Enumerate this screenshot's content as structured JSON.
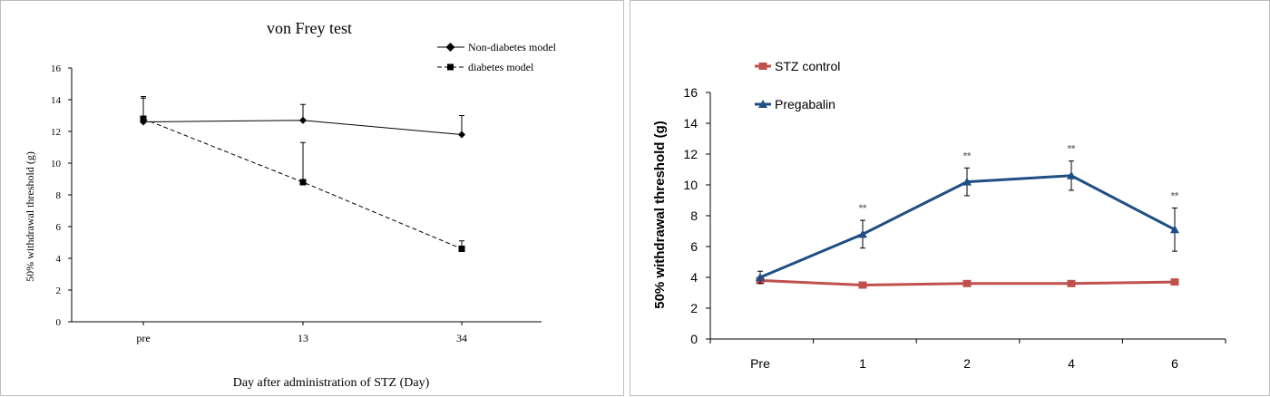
{
  "chart_data": [
    {
      "type": "line",
      "title": "von Frey test",
      "xlabel": "Day after administration  of STZ (Day)",
      "ylabel": "50% withdrawal threshold (g)",
      "categories": [
        "pre",
        "13",
        "34"
      ],
      "ylim": [
        0,
        16
      ],
      "yticks": [
        "0",
        "2",
        "4",
        "6",
        "8",
        "10",
        "12",
        "14",
        "16"
      ],
      "grid": false,
      "legend_position": "top-right",
      "series": [
        {
          "name": "Non-diabetes model",
          "values": [
            12.6,
            12.7,
            11.8
          ],
          "error": [
            1.5,
            1.0,
            1.2
          ],
          "color": "#000000",
          "line_style": "solid",
          "marker": "diamond"
        },
        {
          "name": "diabetes model",
          "values": [
            12.8,
            8.8,
            4.6
          ],
          "error": [
            1.4,
            2.5,
            0.5
          ],
          "color": "#000000",
          "line_style": "dashed",
          "marker": "square"
        }
      ]
    },
    {
      "type": "line",
      "title": "",
      "xlabel": "",
      "ylabel": "50% withdrawal threshold (g)",
      "categories": [
        "Pre",
        "1",
        "2",
        "4",
        "6"
      ],
      "ylim": [
        0,
        16
      ],
      "yticks": [
        "0",
        "2",
        "4",
        "6",
        "8",
        "10",
        "12",
        "14",
        "16"
      ],
      "grid": false,
      "legend_position": "top-left",
      "series": [
        {
          "name": "STZ control",
          "values": [
            3.8,
            3.5,
            3.6,
            3.6,
            3.7
          ],
          "error": [
            0,
            0,
            0,
            0,
            0
          ],
          "color": "#c0504d",
          "marker": "square"
        },
        {
          "name": "Pregabalin",
          "values": [
            4.0,
            6.8,
            10.2,
            10.6,
            7.1
          ],
          "error": [
            0.4,
            0.9,
            0.9,
            0.95,
            1.4
          ],
          "color": "#1f4e84",
          "marker": "triangle",
          "annotations": [
            "",
            "**",
            "**",
            "**",
            "**"
          ]
        }
      ]
    }
  ]
}
